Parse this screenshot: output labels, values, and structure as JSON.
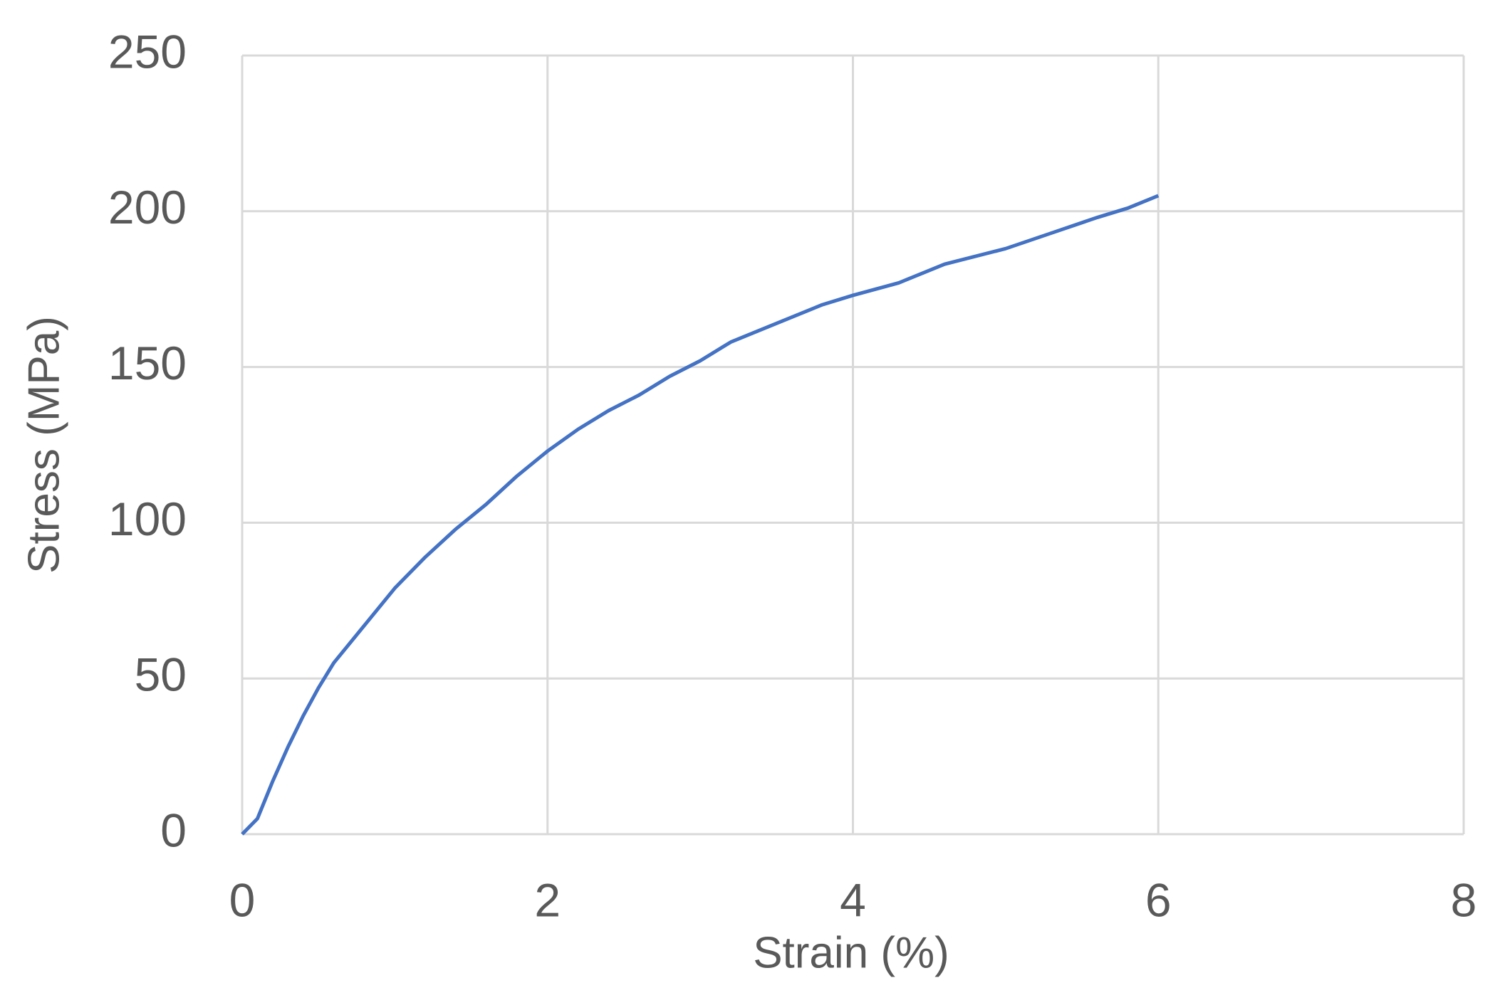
{
  "chart_data": {
    "type": "line",
    "x_label": "Strain (%)",
    "y_label": "Stress (MPa)",
    "x": [
      0,
      0.1,
      0.2,
      0.3,
      0.4,
      0.5,
      0.6,
      0.8,
      1.0,
      1.2,
      1.4,
      1.6,
      1.8,
      2.0,
      2.2,
      2.4,
      2.6,
      2.8,
      3.0,
      3.2,
      3.5,
      3.8,
      4.0,
      4.3,
      4.6,
      5.0,
      5.3,
      5.6,
      5.8,
      6.0
    ],
    "series": [
      {
        "color": "#4472c4",
        "values": [
          0,
          5,
          17,
          28,
          38,
          47,
          55,
          67,
          79,
          89,
          98,
          106,
          115,
          123,
          130,
          136,
          141,
          147,
          152,
          158,
          164,
          170,
          173,
          177,
          183,
          188,
          193,
          198,
          201,
          205
        ]
      }
    ],
    "xlim": [
      0,
      8
    ],
    "xticks": [
      0,
      2,
      4,
      6,
      8
    ],
    "ylim": [
      0,
      250
    ],
    "yticks": [
      0,
      50,
      100,
      150,
      200,
      250
    ],
    "grid": true
  }
}
